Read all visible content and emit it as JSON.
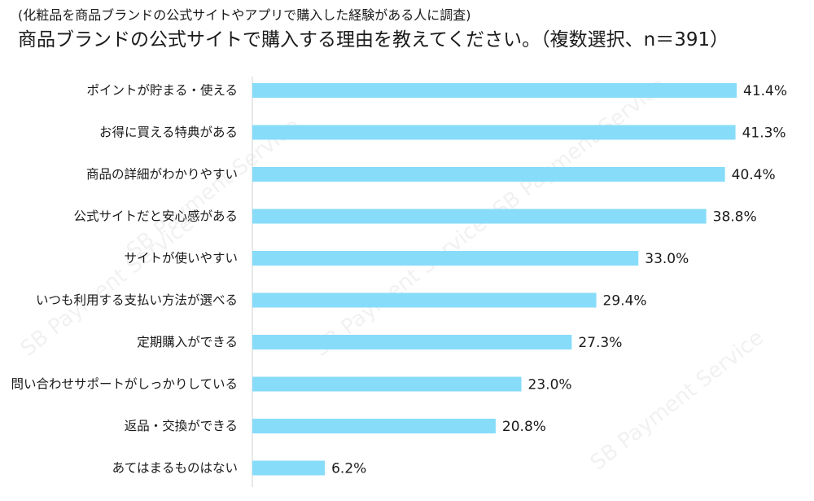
{
  "header": {
    "subtitle": "(化粧品を商品ブランドの公式サイトやアプリで購入した経験がある人に調査)",
    "title": "商品ブランドの公式サイトで購入する理由を教えてください。（複数選択、n＝391）"
  },
  "watermark": {
    "text": "SB Payment Service"
  },
  "colors": {
    "bar": "#87dcf9",
    "axis": "#d0d0d0"
  },
  "chart_data": {
    "type": "bar",
    "orientation": "horizontal",
    "title": "商品ブランドの公式サイトで購入する理由を教えてください。（複数選択、n＝391）",
    "subtitle": "(化粧品を商品ブランドの公式サイトやアプリで購入した経験がある人に調査)",
    "categories": [
      "ポイントが貯まる・使える",
      "お得に買える特典がある",
      "商品の詳細がわかりやすい",
      "公式サイトだと安心感がある",
      "サイトが使いやすい",
      "いつも利用する支払い方法が選べる",
      "定期購入ができる",
      "問い合わせサポートがしっかりしている",
      "返品・交換ができる",
      "あてはまるものはない"
    ],
    "values": [
      41.4,
      41.3,
      40.4,
      38.8,
      33.0,
      29.4,
      27.3,
      23.0,
      20.8,
      6.2
    ],
    "value_labels": [
      "41.4%",
      "41.3%",
      "40.4%",
      "38.8%",
      "33.0%",
      "29.4%",
      "27.3%",
      "23.0%",
      "20.8%",
      "6.2%"
    ],
    "xlim": [
      0,
      41.4
    ],
    "grid": false,
    "legend": "none"
  }
}
